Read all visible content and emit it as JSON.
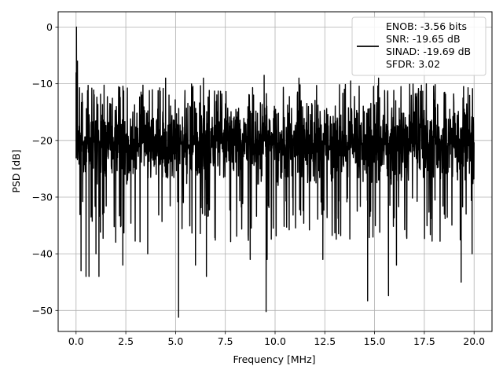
{
  "chart_data": {
    "type": "line",
    "title": "",
    "xlabel": "Frequency [MHz]",
    "ylabel": "PSD [dB]",
    "xlim": [
      -0.9,
      20.9
    ],
    "ylim": [
      -53.7,
      2.7
    ],
    "x_ticks": [
      0.0,
      2.5,
      5.0,
      7.5,
      10.0,
      12.5,
      15.0,
      17.5,
      20.0
    ],
    "x_tick_labels": [
      "0.0",
      "2.5",
      "5.0",
      "7.5",
      "10.0",
      "12.5",
      "15.0",
      "17.5",
      "20.0"
    ],
    "y_ticks": [
      0,
      -10,
      -20,
      -30,
      -40,
      -50
    ],
    "y_tick_labels": [
      "0",
      "−10",
      "−20",
      "−30",
      "−40",
      "−50"
    ],
    "grid": true,
    "legend_position": "top-right",
    "legend_entries": [
      "ENOB: -3.56 bits",
      "SNR: -19.65 dB",
      "SINAD: -19.69 dB",
      "SFDR: 3.02"
    ],
    "series": [
      {
        "color": "#000000",
        "x_range": [
          0,
          20
        ],
        "peak": {
          "x": 0.02,
          "y": 0.0
        },
        "typical_band": [
          -28,
          -13
        ],
        "notable_dips": [
          {
            "x": 0.25,
            "y": -43
          },
          {
            "x": 0.5,
            "y": -44
          },
          {
            "x": 0.65,
            "y": -44
          },
          {
            "x": 1.0,
            "y": -40
          },
          {
            "x": 1.15,
            "y": -44
          },
          {
            "x": 2.35,
            "y": -42
          },
          {
            "x": 3.6,
            "y": -40
          },
          {
            "x": 5.15,
            "y": -51.2
          },
          {
            "x": 6.0,
            "y": -42
          },
          {
            "x": 6.55,
            "y": -44
          },
          {
            "x": 8.75,
            "y": -41
          },
          {
            "x": 9.55,
            "y": -50.2
          },
          {
            "x": 9.6,
            "y": -41
          },
          {
            "x": 12.4,
            "y": -41
          },
          {
            "x": 14.65,
            "y": -48.3
          },
          {
            "x": 15.7,
            "y": -47.4
          },
          {
            "x": 16.1,
            "y": -42
          },
          {
            "x": 19.35,
            "y": -45
          },
          {
            "x": 19.9,
            "y": -40
          }
        ],
        "notable_peaks": [
          {
            "x": 4.5,
            "y": -9
          },
          {
            "x": 6.4,
            "y": -9
          },
          {
            "x": 9.45,
            "y": -8.5
          },
          {
            "x": 11.2,
            "y": -9
          },
          {
            "x": 13.8,
            "y": -9.5
          },
          {
            "x": 15.2,
            "y": -9
          },
          {
            "x": 17.6,
            "y": -10
          }
        ]
      }
    ]
  }
}
